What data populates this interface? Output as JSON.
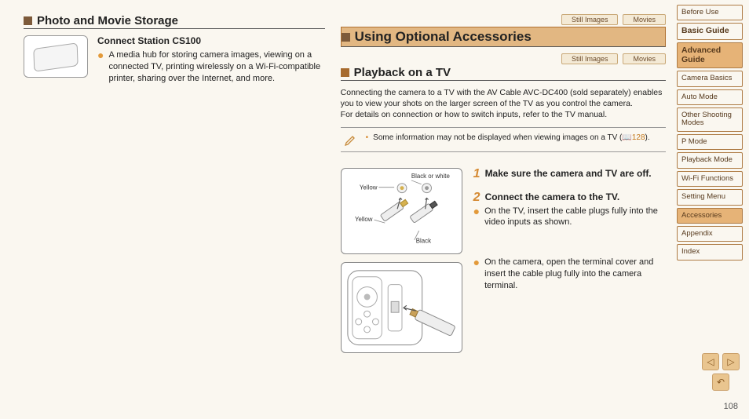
{
  "left": {
    "heading": "Photo and Movie Storage",
    "product_title": "Connect Station CS100",
    "product_desc": "A media hub for storing camera images, viewing on a connected TV, printing wirelessly on a Wi-Fi-compatible printer, sharing over the Internet, and more."
  },
  "right": {
    "tags_top": {
      "still": "Still Images",
      "movies": "Movies"
    },
    "main_heading": "Using Optional Accessories",
    "tags_sub": {
      "still": "Still Images",
      "movies": "Movies"
    },
    "sub_heading": "Playback on a TV",
    "para": "Connecting the camera to a TV with the AV Cable AVC-DC400 (sold separately) enables you to view your shots on the larger screen of the TV as you control the camera.\nFor details on connection or how to switch inputs, refer to the TV manual.",
    "note_text": "Some information may not be displayed when viewing images on a TV (",
    "note_ref": "📖128",
    "note_tail": ").",
    "step1_head": "Make sure the camera and TV are off.",
    "step2_head": "Connect the camera to the TV.",
    "step2_body": "On the TV, insert the cable plugs fully into the video inputs as shown.",
    "step3_body": "On the camera, open the terminal cover and insert the cable plug fully into the camera terminal.",
    "illus_labels": {
      "bw": "Black or white",
      "yellow1": "Yellow",
      "yellow2": "Yellow",
      "black": "Black"
    }
  },
  "sidebar": {
    "items": [
      {
        "label": "Before Use",
        "bold": false,
        "active": false
      },
      {
        "label": "Basic Guide",
        "bold": true,
        "active": false
      },
      {
        "label": "Advanced Guide",
        "bold": true,
        "active": true
      },
      {
        "label": "Camera Basics",
        "bold": false,
        "active": false
      },
      {
        "label": "Auto Mode",
        "bold": false,
        "active": false
      },
      {
        "label": "Other Shooting Modes",
        "bold": false,
        "active": false
      },
      {
        "label": "P Mode",
        "bold": false,
        "active": false
      },
      {
        "label": "Playback Mode",
        "bold": false,
        "active": false
      },
      {
        "label": "Wi-Fi Functions",
        "bold": false,
        "active": false
      },
      {
        "label": "Setting Menu",
        "bold": false,
        "active": false
      },
      {
        "label": "Accessories",
        "bold": false,
        "active": true
      },
      {
        "label": "Appendix",
        "bold": false,
        "active": false
      },
      {
        "label": "Index",
        "bold": false,
        "active": false
      }
    ]
  },
  "page_number": "108",
  "colors": {
    "accent": "#d58a33",
    "accent_fill": "#e6b377",
    "border": "#ae7b44"
  }
}
